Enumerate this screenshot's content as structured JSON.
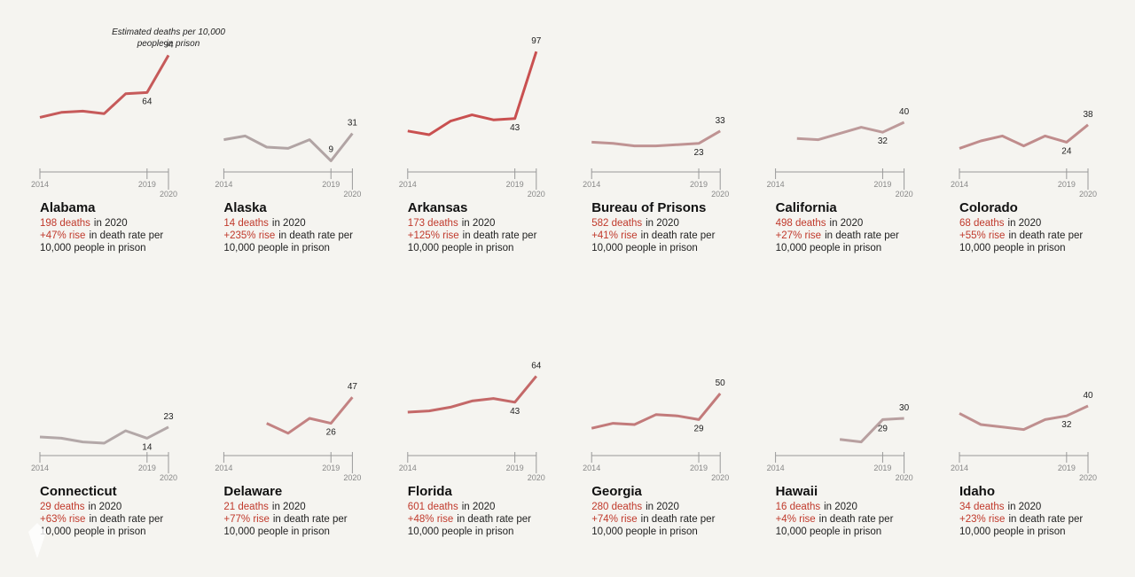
{
  "chart_data": [
    {
      "type": "line",
      "title": "Alabama",
      "deaths": "198 deaths",
      "deaths_text": "in 2020",
      "rise": "+47% rise",
      "rise_text": "in death rate per",
      "per_text": "10,000 people in prison",
      "annotation": "Estimated deaths per 10,000 people in prison",
      "x": [
        2014,
        2015,
        2016,
        2017,
        2018,
        2019,
        2020
      ],
      "xlim": [
        2014,
        2020
      ],
      "xticks": [
        2014,
        2019,
        2020
      ],
      "ylim": [
        0,
        100
      ],
      "series": [
        {
          "color": "#c65a5a",
          "values": [
            44,
            48,
            49,
            47,
            63,
            64,
            94
          ]
        }
      ]
    },
    {
      "type": "line",
      "title": "Alaska",
      "deaths": "14 deaths",
      "deaths_text": "in 2020",
      "rise": "+235% rise",
      "rise_text": "in death rate per",
      "per_text": "10,000 people in prison",
      "x": [
        2014,
        2015,
        2016,
        2017,
        2018,
        2019,
        2020
      ],
      "xlim": [
        2014,
        2020
      ],
      "xticks": [
        2014,
        2019,
        2020
      ],
      "ylim": [
        0,
        100
      ],
      "series": [
        {
          "color": "#b1a4a4",
          "values": [
            26,
            29,
            20,
            19,
            26,
            9,
            31
          ]
        }
      ]
    },
    {
      "type": "line",
      "title": "Arkansas",
      "deaths": "173 deaths",
      "deaths_text": "in 2020",
      "rise": "+125% rise",
      "rise_text": "in death rate per",
      "per_text": "10,000 people in prison",
      "x": [
        2014,
        2015,
        2016,
        2017,
        2018,
        2019,
        2020
      ],
      "xlim": [
        2014,
        2020
      ],
      "xticks": [
        2014,
        2019,
        2020
      ],
      "ylim": [
        0,
        100
      ],
      "series": [
        {
          "color": "#c95050",
          "values": [
            33,
            30,
            41,
            46,
            42,
            43,
            97
          ]
        }
      ]
    },
    {
      "type": "line",
      "title": "Bureau of Prisons",
      "deaths": "582 deaths",
      "deaths_text": "in 2020",
      "rise": "+41% rise",
      "rise_text": "in death rate per",
      "per_text": "10,000 people in prison",
      "x": [
        2014,
        2015,
        2016,
        2017,
        2018,
        2019,
        2020
      ],
      "xlim": [
        2014,
        2020
      ],
      "xticks": [
        2014,
        2019,
        2020
      ],
      "ylim": [
        0,
        100
      ],
      "series": [
        {
          "color": "#bf9393",
          "values": [
            24,
            23,
            21,
            21,
            22,
            23,
            33
          ]
        }
      ]
    },
    {
      "type": "line",
      "title": "California",
      "deaths": "498 deaths",
      "deaths_text": "in 2020",
      "rise": "+27% rise",
      "rise_text": "in death rate per",
      "per_text": "10,000 people in prison",
      "x": [
        2014,
        2015,
        2016,
        2017,
        2018,
        2019,
        2020
      ],
      "xlim": [
        2014,
        2020
      ],
      "xticks": [
        2014,
        2019,
        2020
      ],
      "ylim": [
        0,
        100
      ],
      "series": [
        {
          "color": "#bd9a9a",
          "values": [
            null,
            27,
            26,
            31,
            36,
            32,
            40
          ]
        }
      ]
    },
    {
      "type": "line",
      "title": "Colorado",
      "deaths": "68 deaths",
      "deaths_text": "in 2020",
      "rise": "+55% rise",
      "rise_text": "in death rate per",
      "per_text": "10,000 people in prison",
      "x": [
        2014,
        2015,
        2016,
        2017,
        2018,
        2019,
        2020
      ],
      "xlim": [
        2014,
        2020
      ],
      "xticks": [
        2014,
        2019,
        2020
      ],
      "ylim": [
        0,
        100
      ],
      "series": [
        {
          "color": "#c08c8c",
          "values": [
            19,
            25,
            29,
            21,
            29,
            24,
            38
          ]
        }
      ]
    },
    {
      "type": "line",
      "title": "Connecticut",
      "deaths": "29 deaths",
      "deaths_text": "in 2020",
      "rise": "+63% rise",
      "rise_text": "in death rate per",
      "per_text": "10,000 people in prison",
      "x": [
        2014,
        2015,
        2016,
        2017,
        2018,
        2019,
        2020
      ],
      "xlim": [
        2014,
        2020
      ],
      "xticks": [
        2014,
        2019,
        2020
      ],
      "ylim": [
        0,
        100
      ],
      "series": [
        {
          "color": "#b3a8a8",
          "values": [
            15,
            14,
            11,
            10,
            20,
            14,
            23
          ]
        }
      ]
    },
    {
      "type": "line",
      "title": "Delaware",
      "deaths": "21 deaths",
      "deaths_text": "in 2020",
      "rise": "+77% rise",
      "rise_text": "in death rate per",
      "per_text": "10,000 people in prison",
      "x": [
        2014,
        2015,
        2016,
        2017,
        2018,
        2019,
        2020
      ],
      "xlim": [
        2014,
        2020
      ],
      "xticks": [
        2014,
        2019,
        2020
      ],
      "ylim": [
        0,
        100
      ],
      "series": [
        {
          "color": "#c38282",
          "values": [
            null,
            null,
            26,
            18,
            30,
            26,
            47
          ]
        }
      ]
    },
    {
      "type": "line",
      "title": "Florida",
      "deaths": "601 deaths",
      "deaths_text": "in 2020",
      "rise": "+48% rise",
      "rise_text": "in death rate per",
      "per_text": "10,000 people in prison",
      "x": [
        2014,
        2015,
        2016,
        2017,
        2018,
        2019,
        2020
      ],
      "xlim": [
        2014,
        2020
      ],
      "xticks": [
        2014,
        2019,
        2020
      ],
      "ylim": [
        0,
        100
      ],
      "series": [
        {
          "color": "#c46868",
          "values": [
            35,
            36,
            39,
            44,
            46,
            43,
            64
          ]
        }
      ]
    },
    {
      "type": "line",
      "title": "Georgia",
      "deaths": "280 deaths",
      "deaths_text": "in 2020",
      "rise": "+74% rise",
      "rise_text": "in death rate per",
      "per_text": "10,000 people in prison",
      "x": [
        2014,
        2015,
        2016,
        2017,
        2018,
        2019,
        2020
      ],
      "xlim": [
        2014,
        2020
      ],
      "xticks": [
        2014,
        2019,
        2020
      ],
      "ylim": [
        0,
        100
      ],
      "series": [
        {
          "color": "#c27a7a",
          "values": [
            22,
            26,
            25,
            33,
            32,
            29,
            50
          ]
        }
      ]
    },
    {
      "type": "line",
      "title": "Hawaii",
      "deaths": "16 deaths",
      "deaths_text": "in 2020",
      "rise": "+4% rise",
      "rise_text": "in death rate per",
      "per_text": "10,000 people in prison",
      "x": [
        2014,
        2015,
        2016,
        2017,
        2018,
        2019,
        2020
      ],
      "xlim": [
        2014,
        2020
      ],
      "xticks": [
        2014,
        2019,
        2020
      ],
      "ylim": [
        0,
        100
      ],
      "series": [
        {
          "color": "#b8a0a0",
          "values": [
            null,
            null,
            null,
            13,
            11,
            29,
            30
          ]
        }
      ]
    },
    {
      "type": "line",
      "title": "Idaho",
      "deaths": "34 deaths",
      "deaths_text": "in 2020",
      "rise": "+23% rise",
      "rise_text": "in death rate per",
      "per_text": "10,000 people in prison",
      "x": [
        2014,
        2015,
        2016,
        2017,
        2018,
        2019,
        2020
      ],
      "xlim": [
        2014,
        2020
      ],
      "xticks": [
        2014,
        2019,
        2020
      ],
      "ylim": [
        0,
        100
      ],
      "series": [
        {
          "color": "#bf8f8f",
          "values": [
            34,
            25,
            23,
            21,
            29,
            32,
            40
          ]
        }
      ]
    }
  ]
}
